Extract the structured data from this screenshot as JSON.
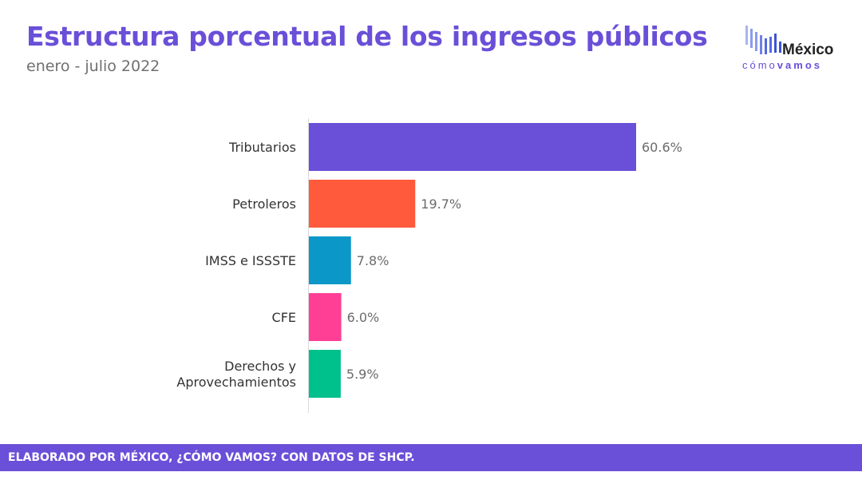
{
  "header": {
    "title": "Estructura porcentual de los ingresos públicos",
    "subtitle": "enero - julio 2022"
  },
  "logo": {
    "word": "México",
    "tag_light": "cómo",
    "tag_bold": "vamos",
    "bars_icon": "equalizer-bars-icon",
    "colors": [
      "#a8b4f0",
      "#8c9cec",
      "#6f80e6",
      "#5468e0",
      "#3d52d8"
    ]
  },
  "chart_data": {
    "type": "bar",
    "orientation": "horizontal",
    "categories": [
      "Tributarios",
      "Petroleros",
      "IMSS e ISSSTE",
      "CFE",
      "Derechos y Aprovechamientos"
    ],
    "category_lines": [
      [
        "Tributarios"
      ],
      [
        "Petroleros"
      ],
      [
        "IMSS e ISSSTE"
      ],
      [
        "CFE"
      ],
      [
        "Derechos y",
        "Aprovechamientos"
      ]
    ],
    "values": [
      60.6,
      19.7,
      7.8,
      6.0,
      5.9
    ],
    "value_labels": [
      "60.6%",
      "19.7%",
      "7.8%",
      "6.0%",
      "5.9%"
    ],
    "colors": [
      "#6a4fd8",
      "#ff5a3c",
      "#0b98c8",
      "#ff3f95",
      "#00c08b"
    ],
    "xlim": [
      0,
      60.6
    ],
    "grid": false
  },
  "footer": {
    "text": "ELABORADO POR MÉXICO, ¿CÓMO VAMOS? CON DATOS DE SHCP."
  }
}
